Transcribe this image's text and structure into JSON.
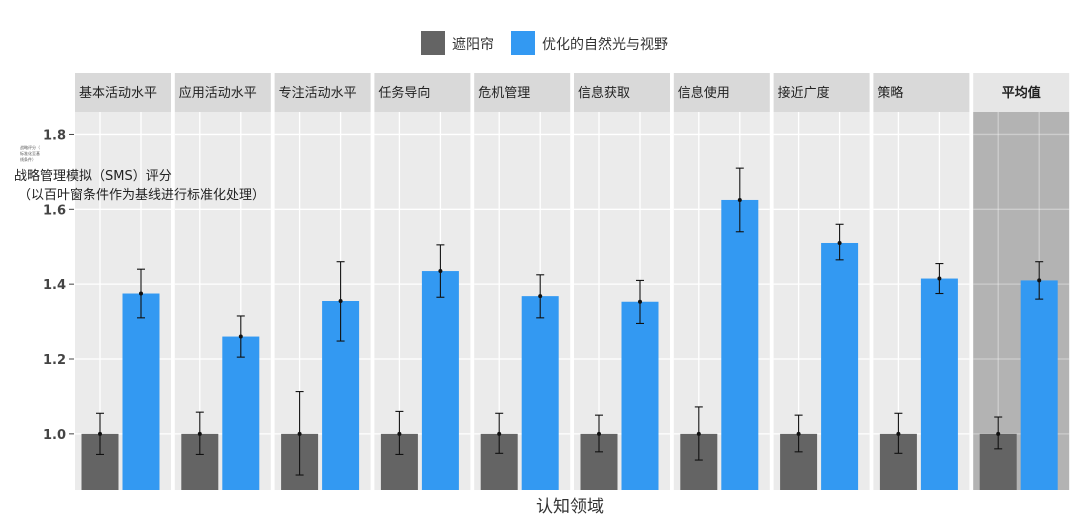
{
  "chart_data": {
    "type": "bar",
    "title": "",
    "xlabel": "认知领域",
    "ylabel_line1": "战略管理模拟（SMS）评分",
    "ylabel_line2": "（以百叶窗条件作为基线进行标准化处理）",
    "ylabel_tiny": [
      "战略评分（",
      "标准化至基",
      "线条件）"
    ],
    "ylim": [
      0.85,
      1.86
    ],
    "yticks": [
      1.0,
      1.2,
      1.4,
      1.6,
      1.8
    ],
    "ytick_labels": [
      "1.0",
      "1.2",
      "1.4",
      "1.6",
      "1.8"
    ],
    "legend_position": "top-center",
    "colors": {
      "blinds": "#646464",
      "optimized": "#3399f2",
      "panel": "#ebebeb",
      "panel_highlight": "#b3b3b3",
      "strip": "#d9d9d9",
      "strip_highlight": "#e6e6e6",
      "grid": "#ffffff"
    },
    "series": [
      {
        "name": "遮阳帘",
        "color": "#646464"
      },
      {
        "name": "优化的自然光与视野",
        "color": "#3399f2"
      }
    ],
    "facets": [
      {
        "label": "基本活动水平",
        "blinds": 1.0,
        "blinds_err": [
          0.945,
          1.055
        ],
        "optimized": 1.375,
        "optimized_err": [
          1.31,
          1.44
        ]
      },
      {
        "label": "应用活动水平",
        "blinds": 1.0,
        "blinds_err": [
          0.945,
          1.058
        ],
        "optimized": 1.26,
        "optimized_err": [
          1.205,
          1.315
        ]
      },
      {
        "label": "专注活动水平",
        "blinds": 1.0,
        "blinds_err": [
          0.89,
          1.113
        ],
        "optimized": 1.355,
        "optimized_err": [
          1.248,
          1.46
        ]
      },
      {
        "label": "任务导向",
        "blinds": 1.0,
        "blinds_err": [
          0.945,
          1.06
        ],
        "optimized": 1.435,
        "optimized_err": [
          1.365,
          1.505
        ]
      },
      {
        "label": "危机管理",
        "blinds": 1.0,
        "blinds_err": [
          0.948,
          1.055
        ],
        "optimized": 1.368,
        "optimized_err": [
          1.31,
          1.425
        ]
      },
      {
        "label": "信息获取",
        "blinds": 1.0,
        "blinds_err": [
          0.952,
          1.05
        ],
        "optimized": 1.353,
        "optimized_err": [
          1.295,
          1.41
        ]
      },
      {
        "label": "信息使用",
        "blinds": 1.0,
        "blinds_err": [
          0.93,
          1.072
        ],
        "optimized": 1.625,
        "optimized_err": [
          1.54,
          1.71
        ]
      },
      {
        "label": "接近广度",
        "blinds": 1.0,
        "blinds_err": [
          0.952,
          1.05
        ],
        "optimized": 1.51,
        "optimized_err": [
          1.465,
          1.56
        ]
      },
      {
        "label": "策略",
        "blinds": 1.0,
        "blinds_err": [
          0.948,
          1.055
        ],
        "optimized": 1.415,
        "optimized_err": [
          1.375,
          1.455
        ]
      },
      {
        "label": "平均值",
        "blinds": 1.0,
        "blinds_err": [
          0.96,
          1.045
        ],
        "optimized": 1.41,
        "optimized_err": [
          1.36,
          1.46
        ],
        "highlight": true
      }
    ]
  }
}
